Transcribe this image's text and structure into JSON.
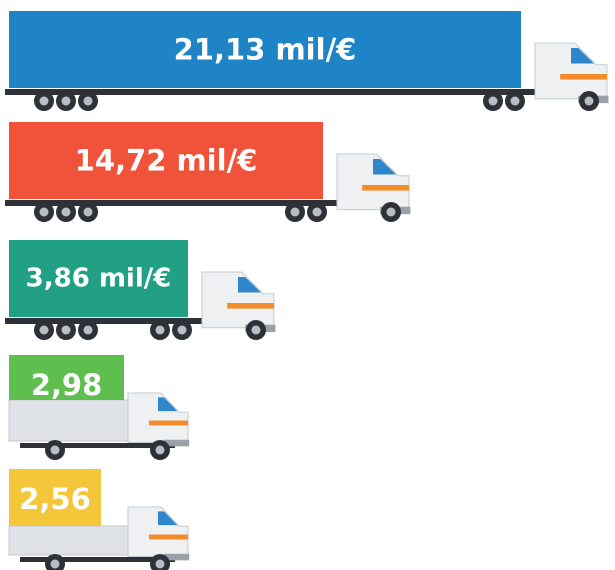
{
  "chart_data": {
    "type": "bar",
    "values": [
      21.13,
      14.72,
      3.86,
      2.98,
      2.56
    ],
    "value_labels": [
      "21,13 mil/€",
      "14,72 mil/€",
      "3,86 mil/€",
      "2,98",
      "2,56"
    ],
    "colors": [
      "#1e84c6",
      "#f0523a",
      "#22a085",
      "#5fbf4e",
      "#f4c73a"
    ]
  }
}
